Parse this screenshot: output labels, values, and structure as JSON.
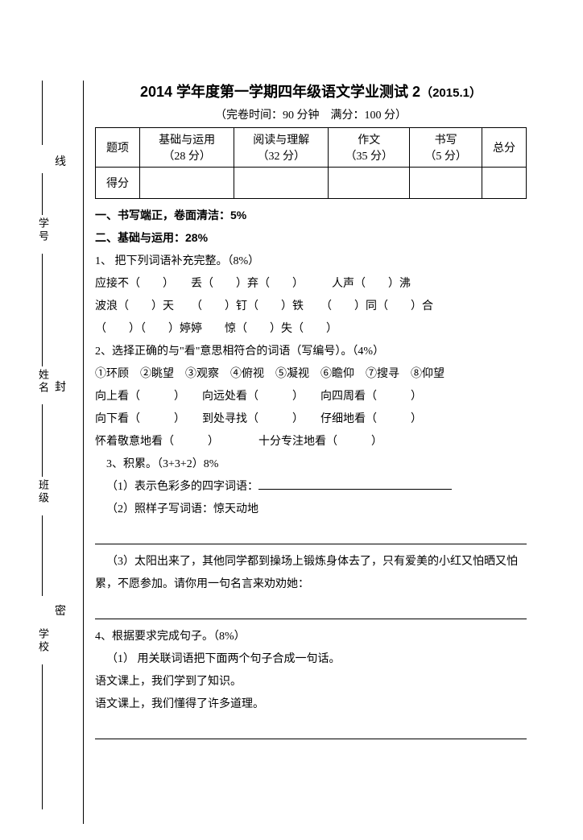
{
  "header": {
    "title_main": "2014 学年度第一学期四年级语文学业测试 2",
    "title_paren": "（2015.1）",
    "subhead": "（完卷时间：90 分钟　满分：100 分）"
  },
  "score_table": {
    "cols": [
      "题项",
      "基础与运用\n（28 分）",
      "阅读与理解\n（32 分）",
      "作文\n（35 分）",
      "书写\n（5 分）",
      "总分"
    ],
    "row2_label": "得分"
  },
  "sections": {
    "s1": "一、书写端正，卷面清洁：5%",
    "s2": "二、基础与运用：28%"
  },
  "q1": {
    "title": "1、 把下列词语补充完整。（8%）",
    "l1": "应接不（　　）　　丢（　　）弃（　　）　　　人声（　　）沸",
    "l2": "波浪（　　）天　　（　　）钉（　　）铁　　（　　）同（　　）合",
    "l3": "（　　）（　　）婷婷　　惊（　　）失（　　）"
  },
  "q2": {
    "title": "2、选择正确的与\"看\"意思相符合的词语（写编号）。（4%）",
    "opts": "①环顾　②眺望　③观察　④俯视　⑤凝视　⑥瞻仰　⑦搜寻　⑧仰望",
    "l1": "向上看（　　　）　　向远处看（　　　）　　向四周看（　　　）",
    "l2": "向下看（　　　）　　到处寻找（　　　）　　仔细地看（　　　）",
    "l3": "怀着敬意地看（　　　）　　　　十分专注地看（　　　）"
  },
  "q3": {
    "title": "3、积累。（3+3+2）8%",
    "p1_label": "（1）表示色彩多的四字词语：",
    "p2_label": "（2）照样子写词语：惊天动地",
    "p3": "（3）太阳出来了，其他同学都到操场上锻炼身体去了，只有爱美的小红又怕晒又怕累，不愿参加。请你用一句名言来劝劝她："
  },
  "q4": {
    "title": "4、根据要求完成句子。（8%）",
    "p1": "（1） 用关联词语把下面两个句子合成一句话。",
    "l1": "语文课上，我们学到了知识。",
    "l2": "语文课上，我们懂得了许多道理。"
  },
  "bind": {
    "labels": {
      "xuehao": "学号",
      "xingming": "姓名",
      "banji": "班级",
      "xuexiao": "学校"
    },
    "chars": {
      "xian": "线",
      "feng": "封",
      "mi": "密"
    }
  }
}
